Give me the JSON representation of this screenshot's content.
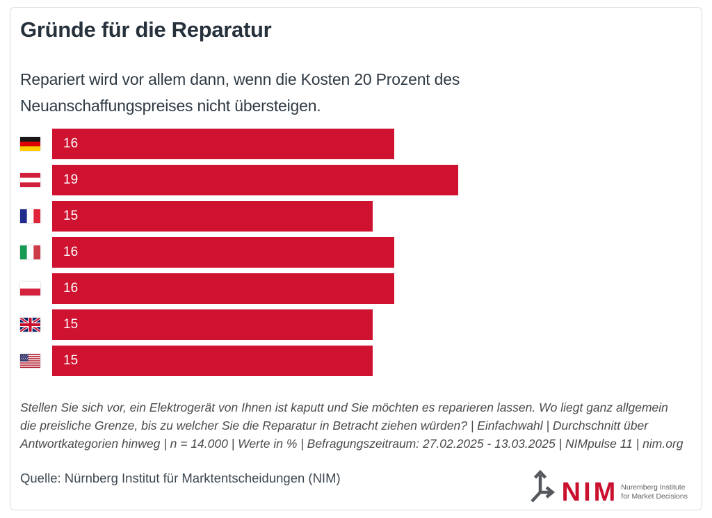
{
  "header": {
    "title": "Gründe für die Reparatur",
    "subtitle": "Repariert wird vor allem dann, wenn die Kosten 20 Prozent des Neuanschaffungspreises nicht übersteigen."
  },
  "chart_data": {
    "type": "bar",
    "orientation": "horizontal",
    "categories": [
      "Deutschland",
      "Österreich",
      "Frankreich",
      "Italien",
      "Polen",
      "Großbritannien",
      "USA"
    ],
    "category_display": "country-flags",
    "values": [
      16,
      19,
      15,
      16,
      16,
      15,
      15
    ],
    "value_unit": "%",
    "xlim": [
      0,
      20
    ],
    "bar_color": "#ce1230",
    "value_label_style": "inside-left-white",
    "title": "Gründe für die Reparatur",
    "grid": false,
    "legend": "none"
  },
  "footnote": "Stellen Sie sich vor, ein Elektrogerät von Ihnen ist kaputt und Sie möchten es reparieren lassen. Wo liegt ganz allgemein die preisliche Grenze, bis zu welcher Sie die Reparatur in Betracht ziehen würden? | Einfachwahl | Durchschnitt über Antwortkategorien hinweg | n = 14.000 | Werte in % | Befragungszeitraum: 27.02.2025 - 13.03.2025 | NIMpulse 11 | nim.org",
  "source": "Quelle: Nürnberg Institut für Marktentscheidungen (NIM)",
  "logo": {
    "wordmark": "NIM",
    "tagline_line1": "Nuremberg Institute",
    "tagline_line2": "for Market Decisions",
    "wordmark_color": "#c9102e",
    "icon_color": "#54585c"
  },
  "colors": {
    "accent_red": "#ce1230",
    "title_text": "#26313c",
    "body_text": "#2f3a44",
    "footnote_text": "#4a4a4a",
    "card_border": "#d8dadc"
  }
}
